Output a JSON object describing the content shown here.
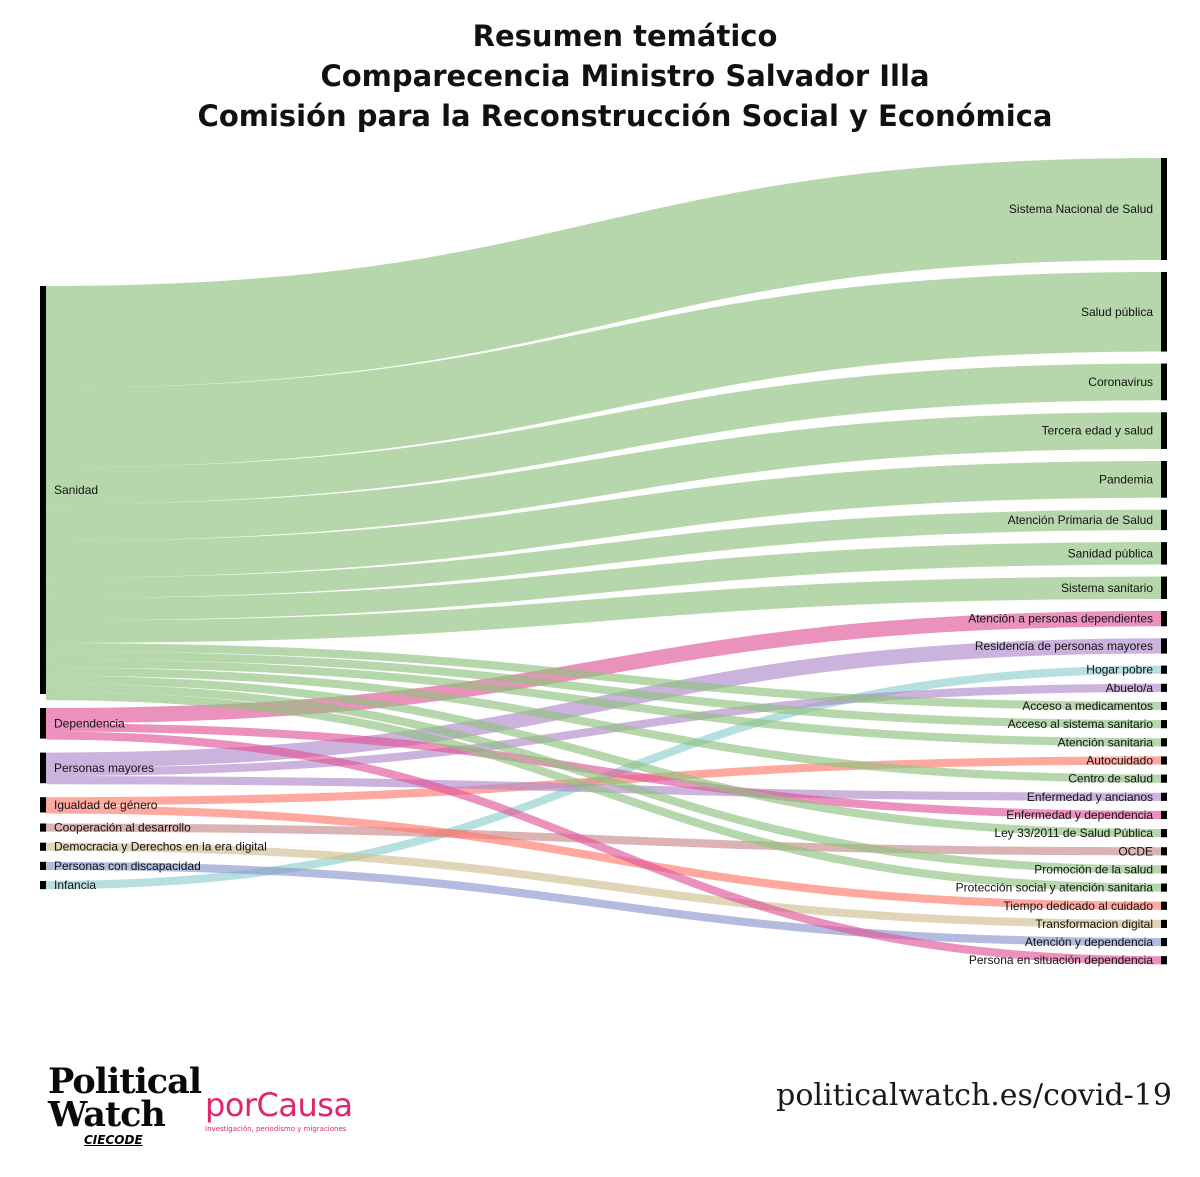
{
  "title": {
    "line1": "Resumen temático",
    "line2": "Comparecencia Ministro Salvador Illa",
    "line3": "Comisión para la Reconstrucción Social y Económica"
  },
  "colors": {
    "Sanidad": "#8fc27e",
    "Dependencia": "#e0569a",
    "Personas mayores": "#b08bcb",
    "Igualdad de género": "#ff7a6b",
    "Cooperación al desarrollo": "#c98a8c",
    "Democracia y Derechos en la era digital": "#cfbf8f",
    "Personas con discapacidad": "#8a98cc",
    "Infancia": "#8fcfcf",
    "node": "#000000"
  },
  "sources": [
    {
      "name": "Sanidad",
      "value": 20
    },
    {
      "name": "Dependencia",
      "value": 1.5
    },
    {
      "name": "Personas mayores",
      "value": 1.5
    },
    {
      "name": "Igualdad de género",
      "value": 0.75
    },
    {
      "name": "Cooperación al desarrollo",
      "value": 0.4
    },
    {
      "name": "Democracia y Derechos en la era digital",
      "value": 0.4
    },
    {
      "name": "Personas con discapacidad",
      "value": 0.4
    },
    {
      "name": "Infancia",
      "value": 0.4
    }
  ],
  "targets": [
    {
      "name": "Sistema Nacional de Salud",
      "value": 5
    },
    {
      "name": "Salud pública",
      "value": 3.9
    },
    {
      "name": "Coronavirus",
      "value": 1.8
    },
    {
      "name": "Tercera edad y salud",
      "value": 1.8
    },
    {
      "name": "Pandemia",
      "value": 1.8
    },
    {
      "name": "Atención Primaria de Salud",
      "value": 1.0
    },
    {
      "name": "Sanidad pública",
      "value": 1.1
    },
    {
      "name": "Sistema sanitario",
      "value": 1.1
    },
    {
      "name": "Atención a personas dependientes",
      "value": 0.75
    },
    {
      "name": "Residencia de personas mayores",
      "value": 0.75
    },
    {
      "name": "Hogar pobre",
      "value": 0.4
    },
    {
      "name": "Abuelo/a",
      "value": 0.4
    },
    {
      "name": "Acceso a medicamentos",
      "value": 0.4
    },
    {
      "name": "Acceso al sistema sanitario",
      "value": 0.4
    },
    {
      "name": "Atención sanitaria",
      "value": 0.4
    },
    {
      "name": "Autocuidado",
      "value": 0.4
    },
    {
      "name": "Centro de salud",
      "value": 0.4
    },
    {
      "name": "Enfermedad y ancianos",
      "value": 0.4
    },
    {
      "name": "Enfermedad y dependencia",
      "value": 0.4
    },
    {
      "name": "Ley 33/2011 de Salud Pública",
      "value": 0.4
    },
    {
      "name": "OCDE",
      "value": 0.4
    },
    {
      "name": "Promoción de la salud",
      "value": 0.4
    },
    {
      "name": "Protección social y atención sanitaria",
      "value": 0.4
    },
    {
      "name": "Tiempo dedicado al cuidado",
      "value": 0.4
    },
    {
      "name": "Transformacion digital",
      "value": 0.4
    },
    {
      "name": "Atención y dependencia",
      "value": 0.4
    },
    {
      "name": "Persona en situación dependencia",
      "value": 0.4
    }
  ],
  "links": [
    {
      "source": "Sanidad",
      "target": "Sistema Nacional de Salud",
      "value": 5
    },
    {
      "source": "Sanidad",
      "target": "Salud pública",
      "value": 3.9
    },
    {
      "source": "Sanidad",
      "target": "Coronavirus",
      "value": 1.8
    },
    {
      "source": "Sanidad",
      "target": "Tercera edad y salud",
      "value": 1.8
    },
    {
      "source": "Sanidad",
      "target": "Pandemia",
      "value": 1.8
    },
    {
      "source": "Sanidad",
      "target": "Atención Primaria de Salud",
      "value": 1.0
    },
    {
      "source": "Sanidad",
      "target": "Sanidad pública",
      "value": 1.1
    },
    {
      "source": "Sanidad",
      "target": "Sistema sanitario",
      "value": 1.1
    },
    {
      "source": "Sanidad",
      "target": "Acceso a medicamentos",
      "value": 0.4
    },
    {
      "source": "Sanidad",
      "target": "Acceso al sistema sanitario",
      "value": 0.4
    },
    {
      "source": "Sanidad",
      "target": "Atención sanitaria",
      "value": 0.4
    },
    {
      "source": "Sanidad",
      "target": "Centro de salud",
      "value": 0.4
    },
    {
      "source": "Sanidad",
      "target": "Ley 33/2011 de Salud Pública",
      "value": 0.4
    },
    {
      "source": "Sanidad",
      "target": "Promoción de la salud",
      "value": 0.4
    },
    {
      "source": "Sanidad",
      "target": "Protección social y atención sanitaria",
      "value": 0.4
    },
    {
      "source": "Dependencia",
      "target": "Atención a personas dependientes",
      "value": 0.75
    },
    {
      "source": "Dependencia",
      "target": "Enfermedad y dependencia",
      "value": 0.4
    },
    {
      "source": "Dependencia",
      "target": "Persona en situación dependencia",
      "value": 0.4
    },
    {
      "source": "Personas mayores",
      "target": "Residencia de personas mayores",
      "value": 0.75
    },
    {
      "source": "Personas mayores",
      "target": "Abuelo/a",
      "value": 0.4
    },
    {
      "source": "Personas mayores",
      "target": "Enfermedad y ancianos",
      "value": 0.4
    },
    {
      "source": "Igualdad de género",
      "target": "Autocuidado",
      "value": 0.4
    },
    {
      "source": "Igualdad de género",
      "target": "Tiempo dedicado al cuidado",
      "value": 0.4
    },
    {
      "source": "Cooperación al desarrollo",
      "target": "OCDE",
      "value": 0.4
    },
    {
      "source": "Democracia y Derechos en la era digital",
      "target": "Transformacion digital",
      "value": 0.4
    },
    {
      "source": "Personas con discapacidad",
      "target": "Atención y dependencia",
      "value": 0.4
    },
    {
      "source": "Infancia",
      "target": "Hogar pobre",
      "value": 0.4
    }
  ],
  "footer": {
    "pw_line1": "Political",
    "pw_line2": "Watch",
    "pw_line3": "CIECODE",
    "pc_name": "porCausa",
    "pc_tagline": "Investigación, periodismo y migraciones",
    "url": "politicalwatch.es/covid-19"
  }
}
